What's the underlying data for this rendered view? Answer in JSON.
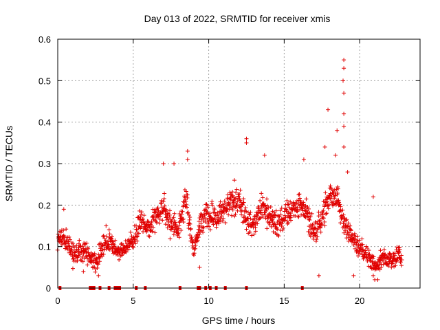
{
  "chart_data": {
    "type": "scatter",
    "title": "Day 013 of 2022, SRMTID for receiver xmis",
    "xlabel": "GPS time / hours",
    "ylabel": "SRMTID / TECUs",
    "xlim": [
      0,
      24
    ],
    "ylim": [
      0,
      0.6
    ],
    "xticks": [
      0,
      5,
      10,
      15,
      20
    ],
    "xtick_labels": [
      "0",
      "5",
      "10",
      "15",
      "20"
    ],
    "yticks": [
      0,
      0.1,
      0.2,
      0.3,
      0.4,
      0.5,
      0.6
    ],
    "ytick_labels": [
      "0",
      "0.1",
      "0.2",
      "0.3",
      "0.4",
      "0.5",
      "0.6"
    ],
    "grid": true,
    "marker": "plus",
    "color": "#e00000",
    "series_name": "SRMTID",
    "profile": [
      {
        "x": 0.0,
        "y": 0.11
      },
      {
        "x": 0.5,
        "y": 0.12
      },
      {
        "x": 1.0,
        "y": 0.08
      },
      {
        "x": 1.5,
        "y": 0.09
      },
      {
        "x": 2.0,
        "y": 0.08
      },
      {
        "x": 2.5,
        "y": 0.06
      },
      {
        "x": 3.0,
        "y": 0.1
      },
      {
        "x": 3.5,
        "y": 0.11
      },
      {
        "x": 4.0,
        "y": 0.08
      },
      {
        "x": 4.5,
        "y": 0.1
      },
      {
        "x": 5.0,
        "y": 0.11
      },
      {
        "x": 5.5,
        "y": 0.16
      },
      {
        "x": 6.0,
        "y": 0.15
      },
      {
        "x": 6.5,
        "y": 0.17
      },
      {
        "x": 7.0,
        "y": 0.2
      },
      {
        "x": 7.5,
        "y": 0.15
      },
      {
        "x": 8.0,
        "y": 0.14
      },
      {
        "x": 8.5,
        "y": 0.22
      },
      {
        "x": 9.0,
        "y": 0.09
      },
      {
        "x": 9.5,
        "y": 0.16
      },
      {
        "x": 10.0,
        "y": 0.18
      },
      {
        "x": 10.5,
        "y": 0.16
      },
      {
        "x": 11.0,
        "y": 0.19
      },
      {
        "x": 11.5,
        "y": 0.2
      },
      {
        "x": 12.0,
        "y": 0.21
      },
      {
        "x": 12.5,
        "y": 0.17
      },
      {
        "x": 13.0,
        "y": 0.15
      },
      {
        "x": 13.5,
        "y": 0.2
      },
      {
        "x": 14.0,
        "y": 0.17
      },
      {
        "x": 14.5,
        "y": 0.15
      },
      {
        "x": 15.0,
        "y": 0.17
      },
      {
        "x": 15.5,
        "y": 0.19
      },
      {
        "x": 16.0,
        "y": 0.2
      },
      {
        "x": 16.5,
        "y": 0.18
      },
      {
        "x": 17.0,
        "y": 0.13
      },
      {
        "x": 17.5,
        "y": 0.17
      },
      {
        "x": 18.0,
        "y": 0.22
      },
      {
        "x": 18.5,
        "y": 0.22
      },
      {
        "x": 19.0,
        "y": 0.15
      },
      {
        "x": 19.5,
        "y": 0.13
      },
      {
        "x": 20.0,
        "y": 0.1
      },
      {
        "x": 20.5,
        "y": 0.08
      },
      {
        "x": 21.0,
        "y": 0.05
      },
      {
        "x": 21.5,
        "y": 0.07
      },
      {
        "x": 22.0,
        "y": 0.07
      },
      {
        "x": 22.5,
        "y": 0.08
      },
      {
        "x": 22.8,
        "y": 0.07
      }
    ],
    "x_range": [
      0.0,
      22.8
    ],
    "spread": 0.04,
    "peaks": [
      {
        "x": 18.95,
        "y": 0.55
      },
      {
        "x": 18.95,
        "y": 0.53
      },
      {
        "x": 18.9,
        "y": 0.5
      },
      {
        "x": 18.95,
        "y": 0.47
      },
      {
        "x": 18.95,
        "y": 0.42
      },
      {
        "x": 18.95,
        "y": 0.39
      },
      {
        "x": 18.95,
        "y": 0.34
      },
      {
        "x": 17.9,
        "y": 0.43
      },
      {
        "x": 18.5,
        "y": 0.38
      },
      {
        "x": 12.5,
        "y": 0.36
      },
      {
        "x": 12.5,
        "y": 0.35
      },
      {
        "x": 8.6,
        "y": 0.33
      },
      {
        "x": 8.6,
        "y": 0.31
      },
      {
        "x": 16.3,
        "y": 0.31
      },
      {
        "x": 17.7,
        "y": 0.34
      },
      {
        "x": 13.7,
        "y": 0.32
      },
      {
        "x": 7.0,
        "y": 0.3
      },
      {
        "x": 7.7,
        "y": 0.3
      },
      {
        "x": 18.4,
        "y": 0.32
      },
      {
        "x": 19.2,
        "y": 0.28
      },
      {
        "x": 20.9,
        "y": 0.22
      },
      {
        "x": 0.4,
        "y": 0.19
      },
      {
        "x": 3.2,
        "y": 0.15
      },
      {
        "x": 11.7,
        "y": 0.26
      }
    ],
    "lows": [
      {
        "x": 21.0,
        "y": 0.02
      },
      {
        "x": 20.9,
        "y": 0.03
      },
      {
        "x": 21.2,
        "y": 0.02
      },
      {
        "x": 19.6,
        "y": 0.03
      },
      {
        "x": 17.3,
        "y": 0.03
      },
      {
        "x": 22.1,
        "y": 0.05
      },
      {
        "x": 2.7,
        "y": 0.03
      },
      {
        "x": 1.7,
        "y": 0.04
      },
      {
        "x": 9.4,
        "y": 0.05
      }
    ],
    "zero_rug_x": [
      0.15,
      2.15,
      2.3,
      2.4,
      2.8,
      3.4,
      3.8,
      3.9,
      4.0,
      4.1,
      5.2,
      5.8,
      8.1,
      9.3,
      9.4,
      9.8,
      10.1,
      10.5,
      11.1,
      12.5,
      16.2
    ]
  }
}
